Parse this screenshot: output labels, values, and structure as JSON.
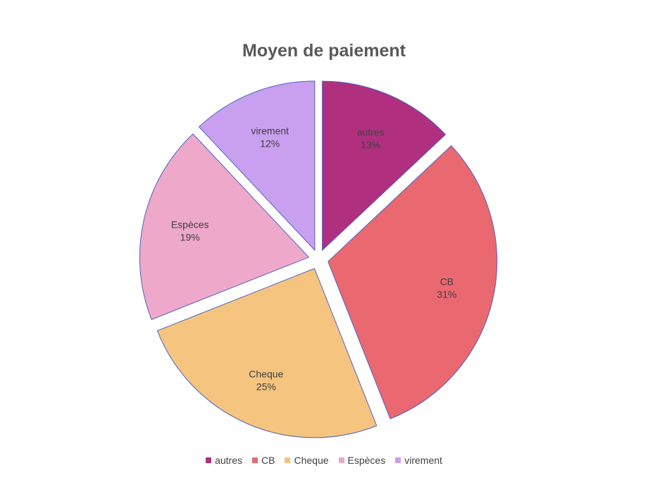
{
  "chart_data": {
    "type": "pie",
    "title": "Moyen de paiement",
    "exploded": true,
    "slices": [
      {
        "label": "autres",
        "value": 13,
        "display": "13%",
        "color": "#b0307f"
      },
      {
        "label": "CB",
        "value": 31,
        "display": "31%",
        "color": "#ea6870"
      },
      {
        "label": "Cheque",
        "value": 25,
        "display": "25%",
        "color": "#f5c47e"
      },
      {
        "label": "Espèces",
        "value": 19,
        "display": "19%",
        "color": "#eea8c9"
      },
      {
        "label": "virement",
        "value": 12,
        "display": "12%",
        "color": "#c99ff0"
      }
    ],
    "legend": {
      "placement": "bottom",
      "entries": [
        "autres",
        "CB",
        "Cheque",
        "Espèces",
        "virement"
      ]
    },
    "outline_color": "#4e63c4"
  }
}
